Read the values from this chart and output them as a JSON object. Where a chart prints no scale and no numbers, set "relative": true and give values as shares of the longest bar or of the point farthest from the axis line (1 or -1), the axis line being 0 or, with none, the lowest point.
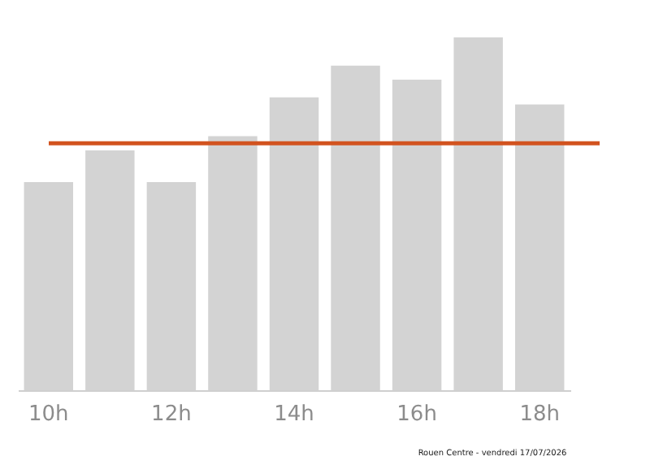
{
  "chart_data": {
    "type": "bar",
    "relative": true,
    "categories": [
      "10h",
      null,
      "12h",
      null,
      "14h",
      null,
      "16h",
      null,
      "18h"
    ],
    "values": [
      0.59,
      0.68,
      0.59,
      0.72,
      0.83,
      0.92,
      0.88,
      1,
      0.81
    ],
    "color": "#d3d3d3",
    "ref_lines": [
      {
        "axis": "y",
        "value": 0.7,
        "color": "#d2531f"
      }
    ],
    "annotations": [
      "Rouen Centre - vendredi 17/07/2026"
    ],
    "grid": false
  }
}
